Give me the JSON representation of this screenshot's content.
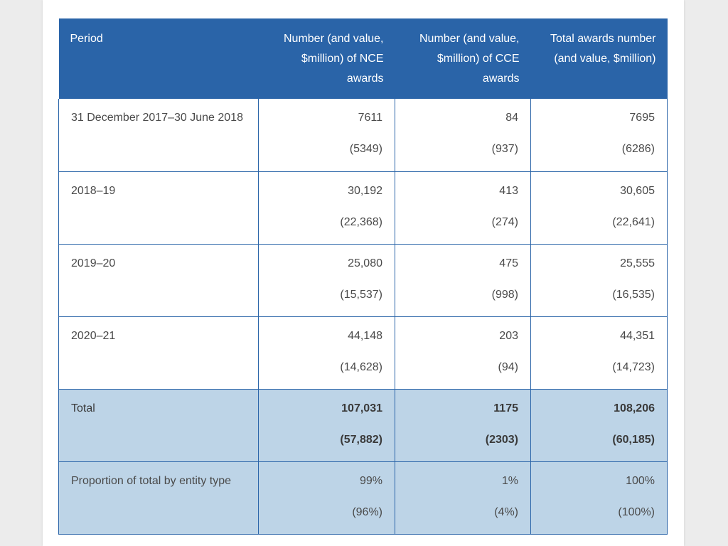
{
  "table": {
    "headers": [
      "Period",
      "Number (and value, $million) of NCE awards",
      "Number (and value, $million) of CCE awards",
      "Total awards number (and value, $million)"
    ],
    "rows": [
      {
        "period": "31 December 2017–30 June 2018",
        "nce": {
          "number": "7611",
          "value": "(5349)"
        },
        "cce": {
          "number": "84",
          "value": "(937)"
        },
        "total": {
          "number": "7695",
          "value": "(6286)"
        }
      },
      {
        "period": "2018–19",
        "nce": {
          "number": "30,192",
          "value": "(22,368)"
        },
        "cce": {
          "number": "413",
          "value": "(274)"
        },
        "total": {
          "number": "30,605",
          "value": "(22,641)"
        }
      },
      {
        "period": "2019–20",
        "nce": {
          "number": "25,080",
          "value": "(15,537)"
        },
        "cce": {
          "number": "475",
          "value": "(998)"
        },
        "total": {
          "number": "25,555",
          "value": "(16,535)"
        }
      },
      {
        "period": "2020–21",
        "nce": {
          "number": "44,148",
          "value": "(14,628)"
        },
        "cce": {
          "number": "203",
          "value": "(94)"
        },
        "total": {
          "number": "44,351",
          "value": "(14,723)"
        }
      }
    ],
    "total_row": {
      "label": "Total",
      "nce": {
        "number": "107,031",
        "value": "(57,882)"
      },
      "cce": {
        "number": "1175",
        "value": "(2303)"
      },
      "total": {
        "number": "108,206",
        "value": "(60,185)"
      }
    },
    "proportion_row": {
      "label": "Proportion of total by entity type",
      "nce": {
        "number": "99%",
        "value": "(96%)"
      },
      "cce": {
        "number": "1%",
        "value": "(4%)"
      },
      "total": {
        "number": "100%",
        "value": "(100%)"
      }
    }
  },
  "colors": {
    "header_bg": "#2a64a8",
    "shaded_row_bg": "#bdd4e7",
    "border": "#2a64a8"
  }
}
